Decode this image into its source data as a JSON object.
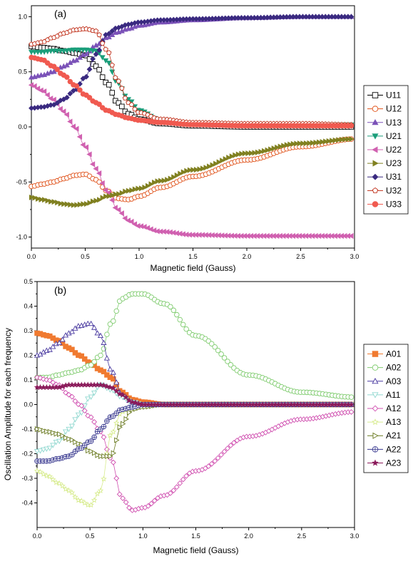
{
  "chart_data": [
    {
      "type": "line",
      "panel_label": "(a)",
      "xlabel": "Magnetic field (Gauss)",
      "ylabel": "",
      "xlim": [
        0,
        3.0
      ],
      "ylim": [
        -1.1,
        1.1
      ],
      "xticks": [
        0.0,
        0.5,
        1.0,
        1.5,
        2.0,
        2.5,
        3.0
      ],
      "xtick_labels": [
        "0.0",
        "0.5",
        "1.0",
        "1.5",
        "2.0",
        "2.5",
        "3.0"
      ],
      "yticks": [
        -1.0,
        -0.5,
        0.0,
        0.5,
        1.0
      ],
      "ytick_labels": [
        "-1.0",
        "-0.5",
        "0.0",
        "0.5",
        "1.0"
      ],
      "legend_position": "right",
      "grid": false,
      "x": [
        0.0,
        0.1,
        0.2,
        0.3,
        0.4,
        0.5,
        0.6,
        0.7,
        0.8,
        0.9,
        1.0,
        1.2,
        1.5,
        2.0,
        2.5,
        3.0
      ],
      "series": [
        {
          "name": "U11",
          "color": "#000000",
          "marker": "square",
          "fill": false,
          "values": [
            0.73,
            0.72,
            0.71,
            0.69,
            0.67,
            0.65,
            0.55,
            0.4,
            0.22,
            0.12,
            0.07,
            0.03,
            0.01,
            0.0,
            0.0,
            0.0
          ]
        },
        {
          "name": "U12",
          "color": "#e0521a",
          "marker": "circle",
          "fill": false,
          "values": [
            -0.54,
            -0.52,
            -0.5,
            -0.47,
            -0.44,
            -0.43,
            -0.48,
            -0.58,
            -0.65,
            -0.66,
            -0.63,
            -0.55,
            -0.45,
            -0.3,
            -0.18,
            -0.11
          ]
        },
        {
          "name": "U13",
          "color": "#7b52b8",
          "marker": "triangle-up",
          "fill": true,
          "values": [
            0.45,
            0.47,
            0.5,
            0.55,
            0.6,
            0.66,
            0.74,
            0.81,
            0.86,
            0.89,
            0.92,
            0.95,
            0.97,
            0.99,
            1.0,
            1.0
          ]
        },
        {
          "name": "U21",
          "color": "#1a9e7a",
          "marker": "triangle-down",
          "fill": true,
          "values": [
            0.68,
            0.68,
            0.69,
            0.69,
            0.7,
            0.7,
            0.69,
            0.6,
            0.4,
            0.25,
            0.15,
            0.06,
            0.03,
            0.02,
            0.02,
            0.02
          ]
        },
        {
          "name": "U22",
          "color": "#d061b0",
          "marker": "triangle-left",
          "fill": true,
          "values": [
            0.38,
            0.33,
            0.25,
            0.14,
            0.0,
            -0.18,
            -0.38,
            -0.58,
            -0.75,
            -0.85,
            -0.9,
            -0.95,
            -0.98,
            -0.99,
            -0.99,
            -0.99
          ]
        },
        {
          "name": "U23",
          "color": "#808020",
          "marker": "triangle-right",
          "fill": true,
          "values": [
            -0.64,
            -0.66,
            -0.68,
            -0.7,
            -0.71,
            -0.7,
            -0.67,
            -0.63,
            -0.61,
            -0.58,
            -0.56,
            -0.49,
            -0.39,
            -0.24,
            -0.15,
            -0.11
          ]
        },
        {
          "name": "U31",
          "color": "#3a2a80",
          "marker": "diamond",
          "fill": true,
          "values": [
            0.17,
            0.18,
            0.2,
            0.25,
            0.33,
            0.45,
            0.66,
            0.84,
            0.9,
            0.93,
            0.95,
            0.97,
            0.98,
            0.99,
            1.0,
            1.0
          ]
        },
        {
          "name": "U32",
          "color": "#c0301a",
          "marker": "pentagon",
          "fill": false,
          "values": [
            0.75,
            0.77,
            0.81,
            0.85,
            0.88,
            0.89,
            0.87,
            0.7,
            0.42,
            0.22,
            0.13,
            0.07,
            0.04,
            0.03,
            0.03,
            0.02
          ]
        },
        {
          "name": "U33",
          "color": "#f05a50",
          "marker": "circle",
          "fill": true,
          "values": [
            0.63,
            0.61,
            0.55,
            0.47,
            0.38,
            0.29,
            0.22,
            0.15,
            0.11,
            0.08,
            0.06,
            0.04,
            0.02,
            0.01,
            0.01,
            0.01
          ]
        }
      ]
    },
    {
      "type": "line",
      "panel_label": "(b)",
      "xlabel": "Magnetic field (Gauss)",
      "ylabel": "Oscillation Amplitude for each frequency",
      "xlim": [
        0,
        3.0
      ],
      "ylim": [
        -0.5,
        0.5
      ],
      "xticks": [
        0.0,
        0.5,
        1.0,
        1.5,
        2.0,
        2.5,
        3.0
      ],
      "xtick_labels": [
        "0.0",
        "0.5",
        "1.0",
        "1.5",
        "2.0",
        "2.5",
        "3.0"
      ],
      "yticks": [
        -0.4,
        -0.3,
        -0.2,
        -0.1,
        0.0,
        0.1,
        0.2,
        0.3,
        0.4,
        0.5
      ],
      "ytick_labels": [
        "-0.4",
        "-0.3",
        "-0.2",
        "-0.1",
        "0.0",
        "0.1",
        "0.2",
        "0.3",
        "0.4",
        "0.5"
      ],
      "legend_position": "right",
      "grid": false,
      "x": [
        0.0,
        0.1,
        0.2,
        0.3,
        0.4,
        0.5,
        0.6,
        0.7,
        0.8,
        0.9,
        1.0,
        1.2,
        1.5,
        2.0,
        2.5,
        3.0
      ],
      "series": [
        {
          "name": "A01",
          "color": "#f07a30",
          "marker": "square",
          "fill": true,
          "values": [
            0.29,
            0.28,
            0.26,
            0.23,
            0.2,
            0.17,
            0.14,
            0.11,
            0.05,
            0.02,
            0.01,
            0.0,
            0.0,
            0.0,
            0.0,
            0.0
          ]
        },
        {
          "name": "A02",
          "color": "#80cc70",
          "marker": "circle",
          "fill": false,
          "values": [
            0.11,
            0.11,
            0.12,
            0.13,
            0.14,
            0.16,
            0.2,
            0.33,
            0.43,
            0.45,
            0.45,
            0.41,
            0.28,
            0.12,
            0.05,
            0.03
          ]
        },
        {
          "name": "A03",
          "color": "#4a3aa0",
          "marker": "triangle-up",
          "fill": false,
          "values": [
            0.2,
            0.22,
            0.25,
            0.29,
            0.32,
            0.33,
            0.28,
            0.14,
            0.04,
            0.01,
            0.0,
            0.0,
            0.0,
            0.0,
            0.0,
            0.0
          ]
        },
        {
          "name": "A11",
          "color": "#90d8d0",
          "marker": "triangle-down",
          "fill": false,
          "values": [
            -0.19,
            -0.18,
            -0.15,
            -0.1,
            -0.04,
            0.03,
            0.08,
            0.06,
            0.03,
            0.01,
            0.0,
            0.0,
            0.0,
            0.0,
            0.0,
            0.0
          ]
        },
        {
          "name": "A12",
          "color": "#d050b0",
          "marker": "diamond",
          "fill": false,
          "values": [
            0.11,
            0.1,
            0.08,
            0.04,
            0.0,
            -0.05,
            -0.11,
            -0.22,
            -0.38,
            -0.43,
            -0.42,
            -0.37,
            -0.27,
            -0.13,
            -0.06,
            -0.03
          ]
        },
        {
          "name": "A13",
          "color": "#d8ec90",
          "marker": "star",
          "fill": false,
          "values": [
            -0.27,
            -0.29,
            -0.32,
            -0.35,
            -0.39,
            -0.41,
            -0.35,
            -0.12,
            -0.03,
            -0.01,
            0.0,
            0.0,
            0.0,
            0.0,
            0.0,
            0.0
          ]
        },
        {
          "name": "A21",
          "color": "#6a7a20",
          "marker": "triangle-right",
          "fill": false,
          "values": [
            -0.1,
            -0.11,
            -0.12,
            -0.14,
            -0.16,
            -0.19,
            -0.21,
            -0.21,
            -0.08,
            -0.02,
            -0.01,
            0.0,
            0.0,
            0.0,
            0.0,
            0.0
          ]
        },
        {
          "name": "A22",
          "color": "#3a3a90",
          "marker": "circle-plus",
          "fill": false,
          "values": [
            -0.23,
            -0.23,
            -0.22,
            -0.21,
            -0.18,
            -0.15,
            -0.1,
            -0.05,
            -0.02,
            -0.01,
            0.0,
            0.0,
            0.0,
            0.0,
            0.0,
            0.0
          ]
        },
        {
          "name": "A23",
          "color": "#8a1a5a",
          "marker": "star",
          "fill": true,
          "values": [
            0.07,
            0.07,
            0.07,
            0.08,
            0.08,
            0.08,
            0.08,
            0.07,
            0.04,
            0.01,
            0.0,
            0.0,
            0.0,
            0.0,
            0.0,
            0.0
          ]
        }
      ]
    }
  ]
}
